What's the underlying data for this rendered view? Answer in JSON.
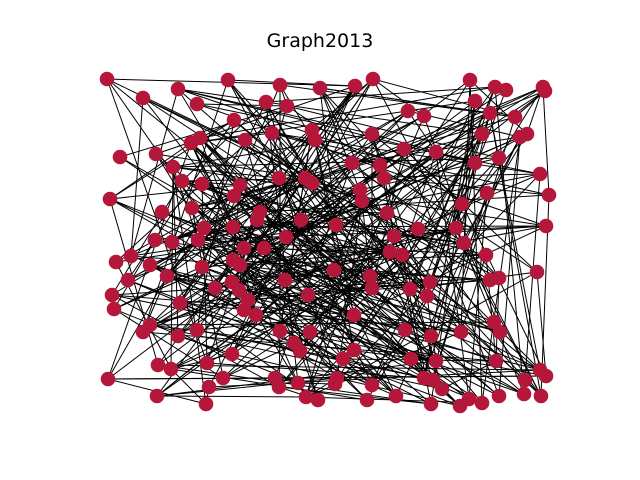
{
  "figure": {
    "title": "Graph2013"
  },
  "style": {
    "node_color": "#b5173a",
    "edge_color": "#000000",
    "background": "#ffffff"
  }
}
